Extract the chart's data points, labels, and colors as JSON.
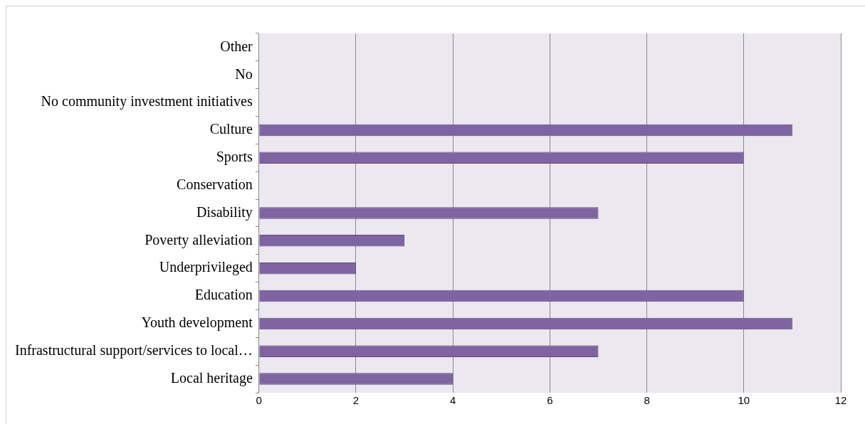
{
  "chart_data": {
    "type": "bar",
    "orientation": "horizontal",
    "categories": [
      "Other",
      "No",
      "No community investment initiatives",
      "Culture",
      "Sports",
      "Conservation",
      "Disability",
      "Poverty alleviation",
      "Underprivileged",
      "Education",
      "Youth development",
      "Infrastructural support/services to local…",
      "Local heritage"
    ],
    "values": [
      0,
      0,
      0,
      11,
      10,
      0,
      7,
      3,
      2,
      10,
      11,
      7,
      4
    ],
    "color": "#8064a2",
    "xlim": [
      0,
      12
    ],
    "xticks": [
      0,
      2,
      4,
      6,
      8,
      10,
      12
    ],
    "grid": "x"
  }
}
